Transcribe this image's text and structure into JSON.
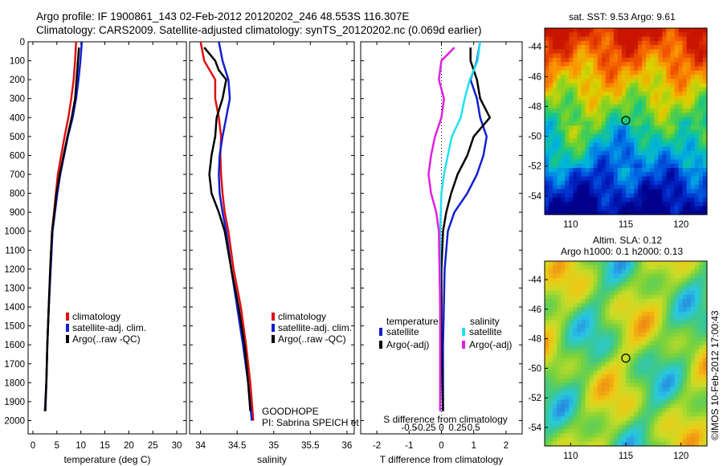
{
  "header": {
    "line1": "Argo profile: IF 1900861_143 02-Feb-2012 20120202_246 48.553S 116.307E",
    "line2": "Climatology: CARS2009. Satellite-adjusted climatology: synTS_20120202.nc (0.069d earlier)"
  },
  "colors": {
    "climatology": "#e01010",
    "satellite": "#1020d0",
    "argo": "#000000",
    "cyan": "#20e0f0",
    "magenta": "#e020e0"
  },
  "depth_axis": {
    "ticks": [
      0,
      100,
      200,
      300,
      400,
      500,
      600,
      700,
      800,
      900,
      1000,
      1100,
      1200,
      1300,
      1400,
      1500,
      1600,
      1700,
      1800,
      1900,
      2000
    ]
  },
  "chart_data": [
    {
      "type": "line",
      "xlabel": "temperature (deg C)",
      "xlim": [
        -1,
        32
      ],
      "ylim": [
        0,
        2070
      ],
      "xticks": [
        0,
        5,
        10,
        15,
        20,
        25,
        30
      ],
      "legend": [
        "climatology",
        "satellite-adj. clim.",
        "Argo(..raw -QC)"
      ],
      "series": [
        {
          "name": "climatology",
          "points": [
            [
              9,
              0
            ],
            [
              8.8,
              100
            ],
            [
              8.5,
              200
            ],
            [
              8.0,
              300
            ],
            [
              7.4,
              400
            ],
            [
              6.6,
              500
            ],
            [
              5.9,
              600
            ],
            [
              5.2,
              700
            ],
            [
              4.8,
              800
            ],
            [
              4.4,
              900
            ],
            [
              4.0,
              1000
            ],
            [
              3.6,
              1200
            ],
            [
              3.3,
              1400
            ],
            [
              3.0,
              1600
            ],
            [
              2.8,
              1800
            ],
            [
              2.5,
              1950
            ]
          ]
        },
        {
          "name": "satellite-adj. clim.",
          "points": [
            [
              10.2,
              0
            ],
            [
              9.9,
              100
            ],
            [
              9.5,
              200
            ],
            [
              9.0,
              300
            ],
            [
              8.3,
              400
            ],
            [
              7.3,
              500
            ],
            [
              6.5,
              600
            ],
            [
              5.7,
              700
            ],
            [
              5.1,
              800
            ],
            [
              4.6,
              900
            ],
            [
              4.1,
              1000
            ],
            [
              3.7,
              1200
            ],
            [
              3.3,
              1400
            ],
            [
              3.0,
              1600
            ],
            [
              2.8,
              1800
            ],
            [
              2.5,
              1950
            ]
          ]
        },
        {
          "name": "Argo(..raw -QC)",
          "points": [
            [
              9.6,
              30
            ],
            [
              9.4,
              100
            ],
            [
              9.1,
              200
            ],
            [
              8.8,
              300
            ],
            [
              8.1,
              400
            ],
            [
              7.2,
              500
            ],
            [
              6.4,
              600
            ],
            [
              5.6,
              700
            ],
            [
              4.9,
              800
            ],
            [
              4.5,
              900
            ],
            [
              4.0,
              1000
            ],
            [
              3.6,
              1200
            ],
            [
              3.3,
              1400
            ],
            [
              3.0,
              1600
            ],
            [
              2.8,
              1800
            ],
            [
              2.6,
              1950
            ]
          ]
        }
      ]
    },
    {
      "type": "line",
      "xlabel": "salinity",
      "xlim": [
        33.85,
        36.1
      ],
      "ylim": [
        0,
        2070
      ],
      "xticks": [
        34,
        34.5,
        35,
        35.5,
        36
      ],
      "legend": [
        "climatology",
        "satellite-adj. clim.",
        "Argo(..raw -QC)"
      ],
      "annotations": [
        "GOODHOPE",
        "PI: Sabrina SPEICH et Michel AREAN"
      ],
      "series": [
        {
          "name": "climatology",
          "points": [
            [
              34.0,
              0
            ],
            [
              34.05,
              100
            ],
            [
              34.2,
              200
            ],
            [
              34.2,
              300
            ],
            [
              34.25,
              400
            ],
            [
              34.28,
              500
            ],
            [
              34.27,
              600
            ],
            [
              34.28,
              700
            ],
            [
              34.3,
              800
            ],
            [
              34.33,
              900
            ],
            [
              34.38,
              1000
            ],
            [
              34.45,
              1200
            ],
            [
              34.55,
              1400
            ],
            [
              34.62,
              1600
            ],
            [
              34.68,
              1800
            ],
            [
              34.72,
              2000
            ]
          ]
        },
        {
          "name": "satellite-adj. clim.",
          "points": [
            [
              34.25,
              0
            ],
            [
              34.3,
              100
            ],
            [
              34.38,
              200
            ],
            [
              34.4,
              300
            ],
            [
              34.35,
              400
            ],
            [
              34.3,
              500
            ],
            [
              34.26,
              600
            ],
            [
              34.25,
              700
            ],
            [
              34.26,
              800
            ],
            [
              34.3,
              900
            ],
            [
              34.35,
              1000
            ],
            [
              34.42,
              1200
            ],
            [
              34.5,
              1400
            ],
            [
              34.58,
              1600
            ],
            [
              34.65,
              1800
            ],
            [
              34.7,
              2000
            ]
          ]
        },
        {
          "name": "Argo(..raw -QC)",
          "points": [
            [
              34.05,
              30
            ],
            [
              34.2,
              100
            ],
            [
              34.25,
              150
            ],
            [
              34.35,
              200
            ],
            [
              34.3,
              300
            ],
            [
              34.22,
              400
            ],
            [
              34.2,
              500
            ],
            [
              34.15,
              600
            ],
            [
              34.12,
              700
            ],
            [
              34.15,
              800
            ],
            [
              34.25,
              900
            ],
            [
              34.33,
              1000
            ],
            [
              34.42,
              1200
            ],
            [
              34.52,
              1400
            ],
            [
              34.6,
              1600
            ],
            [
              34.65,
              1800
            ],
            [
              34.68,
              1950
            ]
          ]
        }
      ]
    },
    {
      "type": "line",
      "xlabel": "T difference from climatology",
      "xlabel2": "S difference from climatology",
      "xlim": [
        -2.5,
        2.5
      ],
      "ylim": [
        0,
        2070
      ],
      "xticks": [
        -2,
        -1,
        0,
        1,
        2
      ],
      "xticks2": [
        "-0.5",
        "-0.25",
        "0",
        "0.25",
        "0.5"
      ],
      "legend_groups": [
        {
          "title": "temperature",
          "items": [
            "satellite",
            "Argo(-adj)"
          ]
        },
        {
          "title": "salinity",
          "items": [
            "satellite",
            "Argo(-adj)"
          ]
        }
      ],
      "series": [
        {
          "name": "satellite",
          "group": "temperature",
          "points": [
            [
              1.2,
              0
            ],
            [
              1.1,
              100
            ],
            [
              0.9,
              200
            ],
            [
              1.1,
              300
            ],
            [
              1.2,
              400
            ],
            [
              1.4,
              500
            ],
            [
              1.3,
              600
            ],
            [
              1.1,
              700
            ],
            [
              0.8,
              800
            ],
            [
              0.4,
              900
            ],
            [
              0.2,
              1000
            ],
            [
              0.1,
              1200
            ],
            [
              0.05,
              1600
            ],
            [
              0.05,
              1950
            ]
          ]
        },
        {
          "name": "Argo(-adj)",
          "group": "temperature",
          "points": [
            [
              0.9,
              30
            ],
            [
              0.9,
              100
            ],
            [
              1.1,
              200
            ],
            [
              1.2,
              300
            ],
            [
              1.5,
              400
            ],
            [
              1.0,
              500
            ],
            [
              0.8,
              600
            ],
            [
              0.5,
              700
            ],
            [
              0.3,
              800
            ],
            [
              0.15,
              900
            ],
            [
              0.05,
              1000
            ],
            [
              0,
              1200
            ],
            [
              0,
              1600
            ],
            [
              0.05,
              1950
            ]
          ]
        },
        {
          "name": "satellite",
          "group": "salinity",
          "points": [
            [
              0.3,
              0
            ],
            [
              0.28,
              100
            ],
            [
              0.22,
              200
            ],
            [
              0.18,
              300
            ],
            [
              0.15,
              400
            ],
            [
              0.08,
              500
            ],
            [
              0.05,
              600
            ],
            [
              0.02,
              700
            ],
            [
              0,
              800
            ],
            [
              -0.01,
              1000
            ],
            [
              -0.01,
              1400
            ],
            [
              -0.01,
              1950
            ]
          ]
        },
        {
          "name": "Argo(-adj)",
          "group": "salinity",
          "points": [
            [
              0.1,
              30
            ],
            [
              0,
              100
            ],
            [
              -0.02,
              200
            ],
            [
              0.02,
              300
            ],
            [
              0,
              400
            ],
            [
              -0.05,
              500
            ],
            [
              -0.08,
              600
            ],
            [
              -0.1,
              700
            ],
            [
              -0.08,
              800
            ],
            [
              -0.04,
              900
            ],
            [
              -0.02,
              1000
            ],
            [
              -0.01,
              1400
            ],
            [
              -0.01,
              1950
            ]
          ]
        }
      ]
    }
  ],
  "map_sst": {
    "title": "sat. SST: 9.53 Argo: 9.61",
    "yticks": [
      "-44",
      "-46",
      "-48",
      "-50",
      "-52",
      "-54"
    ],
    "xticks": [
      "110",
      "115",
      "120"
    ]
  },
  "map_sla": {
    "title1": "Altim. SLA: 0.12",
    "title2": "Argo h1000: 0.1 h2000: 0.13",
    "yticks": [
      "-44",
      "-46",
      "-48",
      "-50",
      "-52",
      "-54"
    ],
    "xticks": [
      "110",
      "115",
      "120"
    ]
  },
  "footer": {
    "credit": "©IMOS 10-Feb-2012 17:00:43"
  }
}
